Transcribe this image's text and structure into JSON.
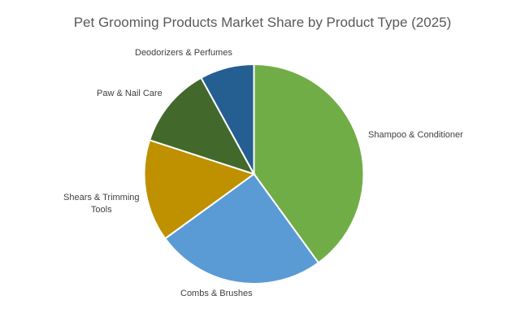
{
  "chart_data": {
    "type": "pie",
    "title": "Pet Grooming Products Market Share by Product Type (2025)",
    "categories": [
      "Shampoo & Conditioner",
      "Combs & Brushes",
      "Shears & Trimming Tools",
      "Paw & Nail Care",
      "Deodorizers & Perfumes"
    ],
    "values": [
      40,
      25,
      15,
      12,
      8
    ],
    "unit": "%",
    "colors": [
      "#70ad47",
      "#5b9bd5",
      "#bf9000",
      "#43682b",
      "#255e91"
    ],
    "start_angle_deg": 0,
    "direction": "clockwise",
    "legend": "none (category data labels outside slices)"
  },
  "labels": {
    "shampoo": "Shampoo & Conditioner",
    "combs": "Combs & Brushes",
    "shears_line1": "Shears & Trimming",
    "shears_line2": "Tools",
    "paw": "Paw & Nail Care",
    "deod": "Deodorizers & Perfumes"
  }
}
